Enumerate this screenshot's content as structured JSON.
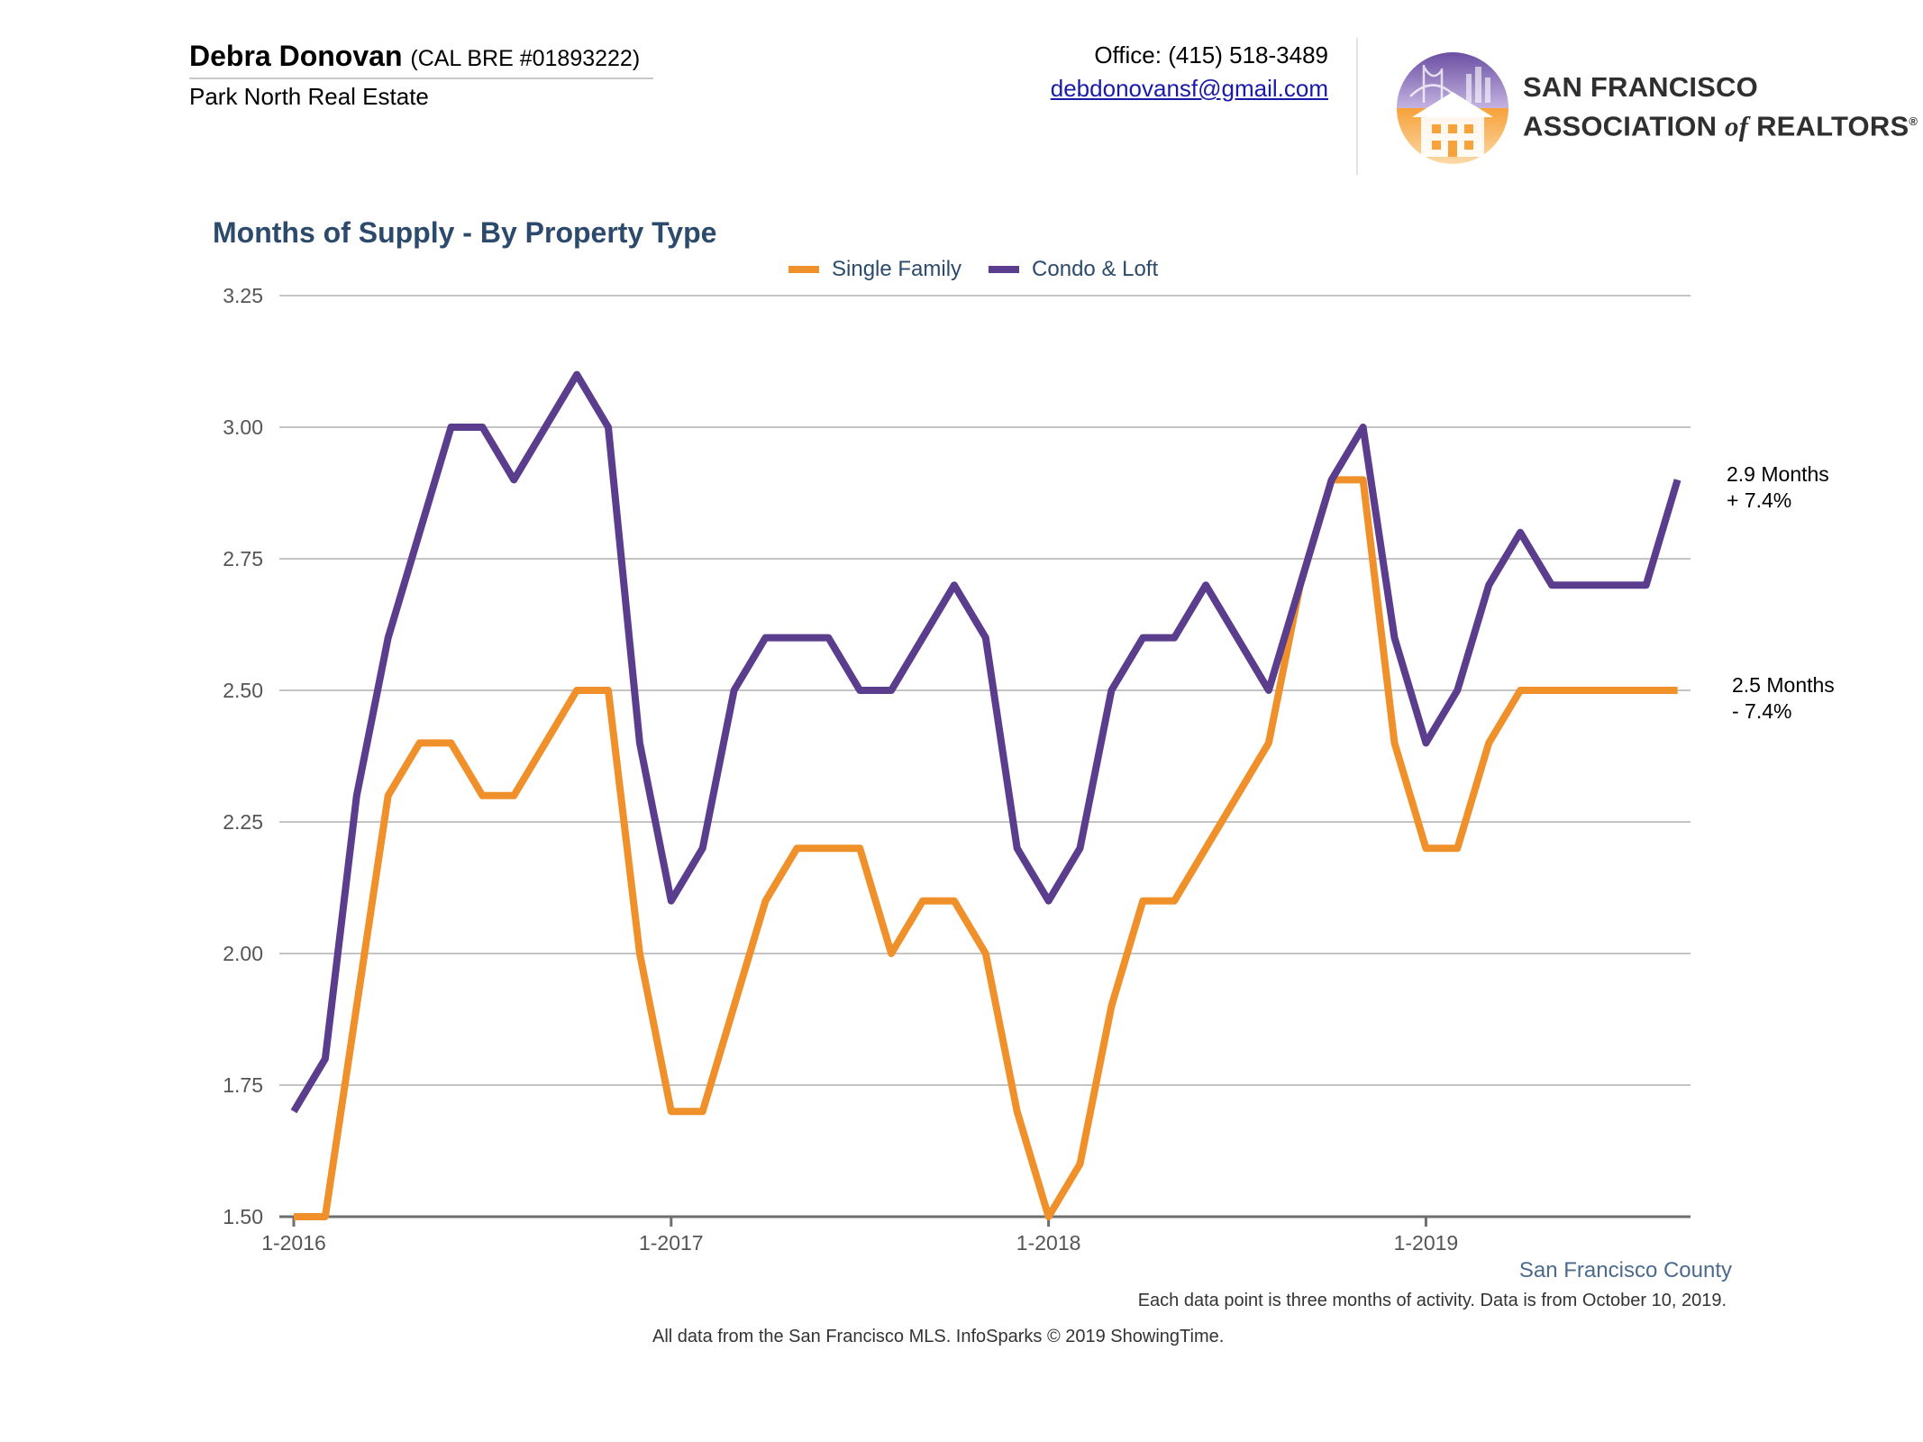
{
  "header": {
    "agent_name": "Debra Donovan",
    "agent_license": "(CAL BRE #01893222)",
    "agent_company": "Park North Real Estate",
    "office_phone": "Office: (415) 518-3489",
    "email": "debdonovansf@gmail.com",
    "logo_line1": "SAN FRANCISCO",
    "logo_line2_a": "ASSOCIATION",
    "logo_line2_of": "of",
    "logo_line2_b": "REALTORS",
    "logo_reg": "®"
  },
  "chart_data": {
    "type": "line",
    "title": "Months of Supply - By Property Type",
    "ylim": [
      1.5,
      3.25
    ],
    "yticks": [
      "3.25",
      "3.00",
      "2.75",
      "2.50",
      "2.25",
      "2.00",
      "1.75",
      "1.50"
    ],
    "xticks": [
      {
        "label": "1-2016",
        "index": 0
      },
      {
        "label": "1-2017",
        "index": 12
      },
      {
        "label": "1-2018",
        "index": 24
      },
      {
        "label": "1-2019",
        "index": 36
      }
    ],
    "legend_position": "top-center",
    "series": [
      {
        "name": "Single Family",
        "color": "#f0902a",
        "values": [
          1.5,
          1.5,
          1.9,
          2.3,
          2.4,
          2.4,
          2.3,
          2.3,
          2.4,
          2.5,
          2.5,
          2.0,
          1.7,
          1.7,
          1.9,
          2.1,
          2.2,
          2.2,
          2.2,
          2.0,
          2.1,
          2.1,
          2.0,
          1.7,
          1.5,
          1.6,
          1.9,
          2.1,
          2.1,
          2.2,
          2.3,
          2.4,
          2.7,
          2.9,
          2.9,
          2.4,
          2.2,
          2.2,
          2.4,
          2.5,
          2.5,
          2.5,
          2.5,
          2.5,
          2.5
        ]
      },
      {
        "name": "Condo & Loft",
        "color": "#5a3d8c",
        "values": [
          1.7,
          1.8,
          2.3,
          2.6,
          2.8,
          3.0,
          3.0,
          2.9,
          3.0,
          3.1,
          3.0,
          2.4,
          2.1,
          2.2,
          2.5,
          2.6,
          2.6,
          2.6,
          2.5,
          2.5,
          2.6,
          2.7,
          2.6,
          2.2,
          2.1,
          2.2,
          2.5,
          2.6,
          2.6,
          2.7,
          2.6,
          2.5,
          2.7,
          2.9,
          3.0,
          2.6,
          2.4,
          2.5,
          2.7,
          2.8,
          2.7,
          2.7,
          2.7,
          2.7,
          2.9
        ]
      }
    ],
    "annotations": [
      {
        "series": "Condo & Loft",
        "line1": "2.9 Months",
        "line2": "+ 7.4%"
      },
      {
        "series": "Single Family",
        "line1": "2.5 Months",
        "line2": "- 7.4%"
      }
    ]
  },
  "footer": {
    "county": "San Francisco County",
    "note": "Each data point is three months of activity. Data is from October 10, 2019.",
    "source": "All data from the San Francisco MLS. InfoSparks © 2019 ShowingTime."
  }
}
